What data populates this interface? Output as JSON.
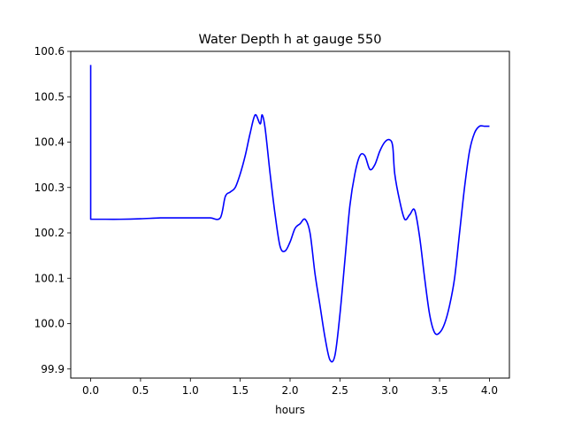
{
  "chart_data": {
    "type": "line",
    "title": "Water Depth h at gauge 550",
    "xlabel": "hours",
    "ylabel": "",
    "xlim": [
      -0.2,
      4.2
    ],
    "ylim": [
      99.88,
      100.6
    ],
    "xticks": [
      0.0,
      0.5,
      1.0,
      1.5,
      2.0,
      2.5,
      3.0,
      3.5,
      4.0
    ],
    "xtick_labels": [
      "0.0",
      "0.5",
      "1.0",
      "1.5",
      "2.0",
      "2.5",
      "3.0",
      "3.5",
      "4.0"
    ],
    "yticks": [
      99.9,
      100.0,
      100.1,
      100.2,
      100.3,
      100.4,
      100.5,
      100.6
    ],
    "ytick_labels": [
      "99.9",
      "100.0",
      "100.1",
      "100.2",
      "100.3",
      "100.4",
      "100.5",
      "100.6"
    ],
    "grid": false,
    "series": [
      {
        "color": "#0000ff",
        "x": [
          0.0,
          0.0,
          0.0,
          0.1,
          0.3,
          0.5,
          0.7,
          0.9,
          1.0,
          1.1,
          1.2,
          1.3,
          1.35,
          1.4,
          1.45,
          1.5,
          1.55,
          1.6,
          1.65,
          1.7,
          1.72,
          1.75,
          1.8,
          1.85,
          1.9,
          1.95,
          2.0,
          2.05,
          2.1,
          2.15,
          2.2,
          2.25,
          2.3,
          2.35,
          2.4,
          2.45,
          2.5,
          2.55,
          2.6,
          2.65,
          2.7,
          2.75,
          2.8,
          2.85,
          2.9,
          2.95,
          3.0,
          3.03,
          3.05,
          3.1,
          3.15,
          3.2,
          3.25,
          3.3,
          3.35,
          3.4,
          3.45,
          3.5,
          3.55,
          3.6,
          3.65,
          3.7,
          3.75,
          3.8,
          3.85,
          3.9,
          3.95,
          4.0
        ],
        "y": [
          100.57,
          100.23,
          100.23,
          100.23,
          100.23,
          100.231,
          100.233,
          100.233,
          100.233,
          100.233,
          100.233,
          100.233,
          100.28,
          100.29,
          100.3,
          100.33,
          100.37,
          100.42,
          100.46,
          100.44,
          100.46,
          100.43,
          100.33,
          100.24,
          100.17,
          100.16,
          100.18,
          100.21,
          100.22,
          100.23,
          100.2,
          100.11,
          100.04,
          99.97,
          99.92,
          99.93,
          100.02,
          100.14,
          100.26,
          100.33,
          100.37,
          100.37,
          100.34,
          100.35,
          100.38,
          100.4,
          100.405,
          100.39,
          100.33,
          100.27,
          100.23,
          100.24,
          100.25,
          100.19,
          100.1,
          100.02,
          99.98,
          99.98,
          100.0,
          100.04,
          100.1,
          100.2,
          100.3,
          100.38,
          100.42,
          100.435,
          100.435,
          100.435
        ]
      }
    ]
  }
}
